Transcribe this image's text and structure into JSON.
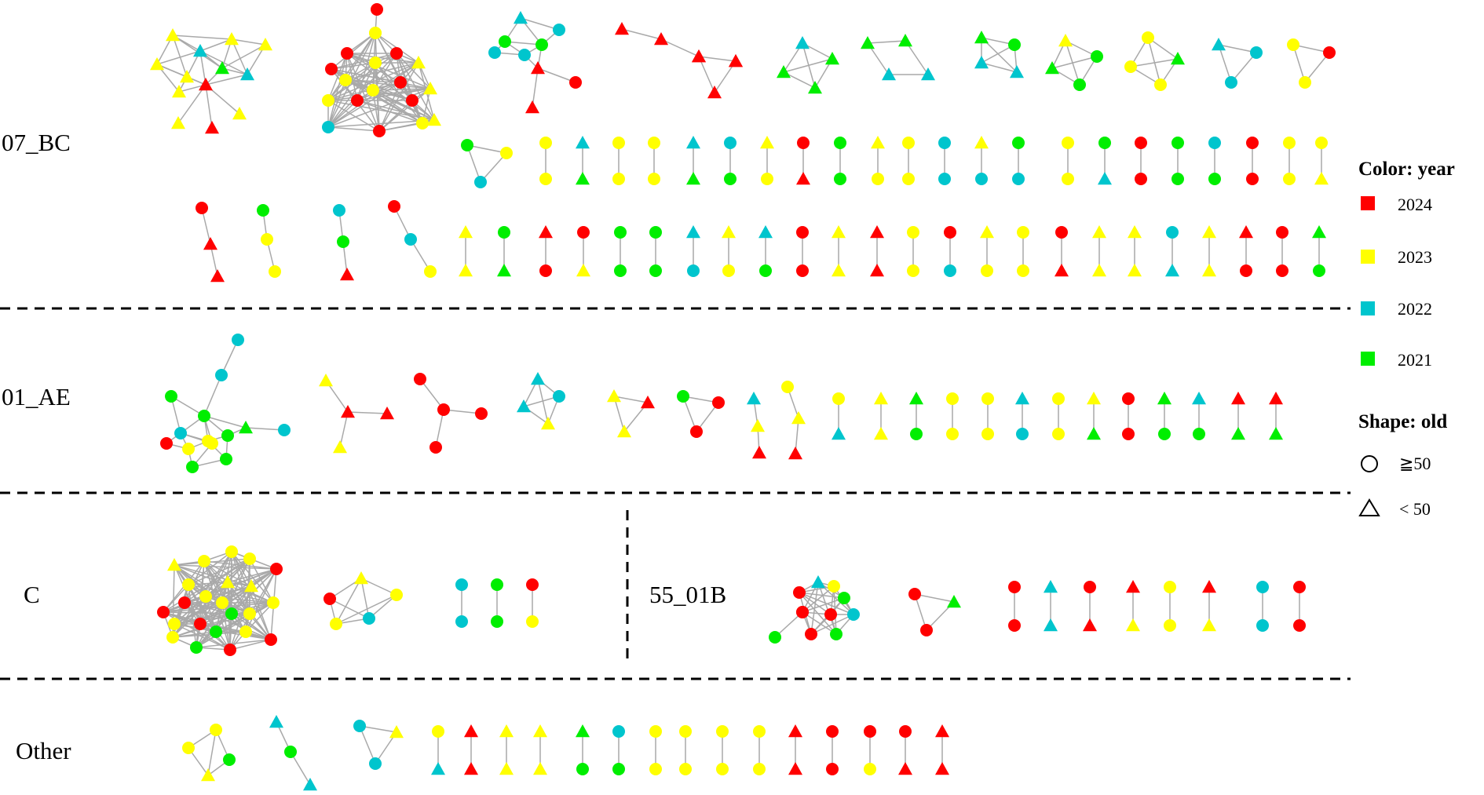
{
  "colors": {
    "2024": "#ff0000",
    "2023": "#ffff00",
    "2022": "#00c5cd",
    "2021": "#00ee00",
    "edge": "#a9a9a9"
  },
  "groups": [
    {
      "name": "07_BC"
    },
    {
      "name": "01_AE"
    },
    {
      "name": "C"
    },
    {
      "name": "55_01B"
    },
    {
      "name": "Other"
    }
  ],
  "legend": {
    "color_title": "Color: year",
    "years": [
      "2024",
      "2023",
      "2022",
      "2021"
    ],
    "shape_title": "Shape: old",
    "shapes": [
      {
        "shape": "circle",
        "label": "≧50"
      },
      {
        "shape": "triangle",
        "label": "< 50"
      }
    ]
  }
}
